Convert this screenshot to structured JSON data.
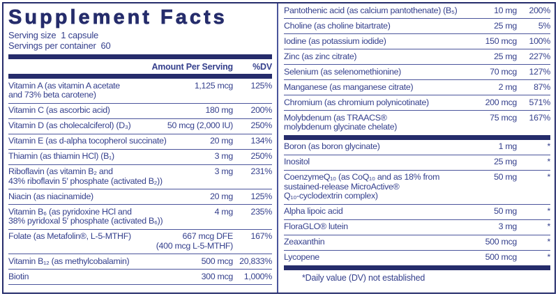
{
  "title": "Supplement Facts",
  "serving": {
    "size_line": "Serving size  1 capsule",
    "container_line": "Servings per container  60"
  },
  "header": {
    "amount": "Amount Per Serving",
    "dv": "%DV"
  },
  "left_rows": [
    {
      "name": "Vitamin A (as vitamin A acetate\nand 73% beta carotene)",
      "amount": "1,125 mcg",
      "dv": "125%"
    },
    {
      "name": "Vitamin C (as ascorbic acid)",
      "amount": "180 mg",
      "dv": "200%"
    },
    {
      "name": "Vitamin D (as cholecalciferol) (D₃)",
      "amount": "50 mcg (2,000 IU)",
      "dv": "250%"
    },
    {
      "name": "Vitamin E (as d-alpha tocopherol succinate)",
      "amount": "20 mg",
      "dv": "134%"
    },
    {
      "name": "Thiamin (as thiamin HCl) (B₁)",
      "amount": "3 mg",
      "dv": "250%"
    },
    {
      "name": "Riboflavin (as vitamin B₂ and\n43% riboflavin 5′ phosphate (activated B₂))",
      "amount": "3 mg",
      "dv": "231%"
    },
    {
      "name": "Niacin (as niacinamide)",
      "amount": "20 mg",
      "dv": "125%"
    },
    {
      "name": "Vitamin B₆ (as pyridoxine HCl and\n38% pyridoxal 5′ phosphate (activated B₆))",
      "amount": "4 mg",
      "dv": "235%"
    },
    {
      "name": "Folate (as Metafolin®, L-5-MTHF)",
      "amount": "667 mcg DFE\n(400 mcg L-5-MTHF)",
      "dv": "167%"
    },
    {
      "name": "Vitamin B₁₂ (as methylcobalamin)",
      "amount": "500 mcg",
      "dv": "20,833%"
    },
    {
      "name": "Biotin",
      "amount": "300 mcg",
      "dv": "1,000%"
    }
  ],
  "right_rows_top": [
    {
      "name": "Pantothenic acid (as calcium pantothenate) (B₅)",
      "amount": "10 mg",
      "dv": "200%"
    },
    {
      "name": "Choline (as choline bitartrate)",
      "amount": "25 mg",
      "dv": "5%"
    },
    {
      "name": "Iodine (as potassium iodide)",
      "amount": "150 mcg",
      "dv": "100%"
    },
    {
      "name": "Zinc (as zinc citrate)",
      "amount": "25 mg",
      "dv": "227%"
    },
    {
      "name": "Selenium (as selenomethionine)",
      "amount": "70 mcg",
      "dv": "127%"
    },
    {
      "name": "Manganese (as manganese citrate)",
      "amount": "2 mg",
      "dv": "87%"
    },
    {
      "name": "Chromium (as chromium polynicotinate)",
      "amount": "200 mcg",
      "dv": "571%"
    },
    {
      "name": "Molybdenum (as TRAACS®\nmolybdenum glycinate chelate)",
      "amount": "75 mcg",
      "dv": "167%"
    }
  ],
  "right_rows_bottom": [
    {
      "name": "Boron (as boron glycinate)",
      "amount": "1 mg",
      "dv": "*"
    },
    {
      "name": "Inositol",
      "amount": "25 mg",
      "dv": "*"
    },
    {
      "name": "CoenzymeQ₁₀ (as CoQ₁₀ and as 18% from\nsustained-release MicroActive®\nQ₁₀-cyclodextrin complex)",
      "amount": "50 mg",
      "dv": "*"
    },
    {
      "name": "Alpha lipoic acid",
      "amount": "50 mg",
      "dv": "*"
    },
    {
      "name": "FloraGLO® lutein",
      "amount": "3 mg",
      "dv": "*"
    },
    {
      "name": "Zeaxanthin",
      "amount": "500 mcg",
      "dv": "*"
    },
    {
      "name": "Lycopene",
      "amount": "500 mcg",
      "dv": "*"
    }
  ],
  "footnote": "*Daily value (DV) not established",
  "colors": {
    "text": "#343f8c",
    "bar": "#252c6b",
    "line": "#4a549b",
    "background": "#ffffff"
  }
}
